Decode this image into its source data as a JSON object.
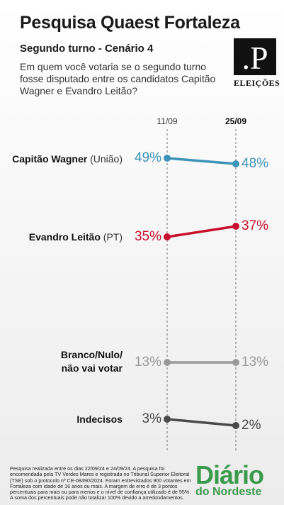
{
  "header": {
    "title": "Pesquisa Quaest Fortaleza",
    "subtitle": "Segundo turno - Cenário 4",
    "question": "Em quem você votaria se o segundo turno fosse disputado entre os candidatos Capitão Wagner e Evandro Leitão?"
  },
  "logo": {
    "mark": ".P",
    "tag": "ELEIÇÕES"
  },
  "chart_data": {
    "type": "line",
    "x": [
      "11/09",
      "25/09"
    ],
    "series": [
      {
        "name": "Capitão Wagner",
        "detail": "(União)",
        "values": [
          49,
          48
        ],
        "labels": [
          "49%",
          "48%"
        ],
        "color": "#3d93b8"
      },
      {
        "name": "Evandro Leitão",
        "detail": "(PT)",
        "values": [
          35,
          37
        ],
        "labels": [
          "35%",
          "37%"
        ],
        "color": "#c8102e"
      },
      {
        "name": "Branco/Nulo/ não vai votar",
        "detail": "",
        "values": [
          13,
          13
        ],
        "labels": [
          "13%",
          "13%"
        ],
        "color": "#9a9a9a"
      },
      {
        "name": "Indecisos",
        "detail": "",
        "values": [
          3,
          2
        ],
        "labels": [
          "3%",
          "2%"
        ],
        "color": "#4a4a4a"
      }
    ],
    "ylim": [
      0,
      55
    ],
    "xlabel": "",
    "ylabel": ""
  },
  "footer": {
    "note": "Pesquisa realizada entre os dias 22/09/24 e 24/09/24. A pesquisa foi encomendada pela TV Verdes Mares e registrada no Tribunal Superior Eleitoral (TSE) sob o protocolo nº CE-08490/2024. Foram entrevistados 900 votantes em Fortaleza com idade de 16 anos ou mais. A margem de erro é de 3 pontos percentuais para mais ou para menos e o nível de confiança utilizado é de 95%. A soma dos percentuais pode não totalizar 100% devido a arredondamentos."
  },
  "brand": {
    "line1": "Diário",
    "line2": "do Nordeste",
    "color": "#3b9b4c"
  }
}
